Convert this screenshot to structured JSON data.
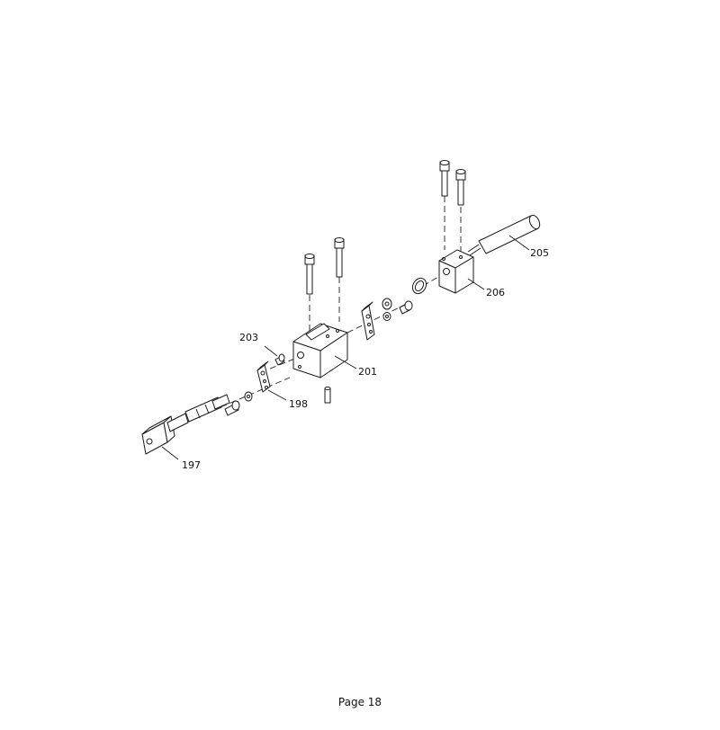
{
  "diagram": {
    "callouts": {
      "c197": "197",
      "c198": "198",
      "c201": "201",
      "c203": "203",
      "c205": "205",
      "c206": "206"
    }
  },
  "footer": {
    "page_label": "Page 18"
  }
}
